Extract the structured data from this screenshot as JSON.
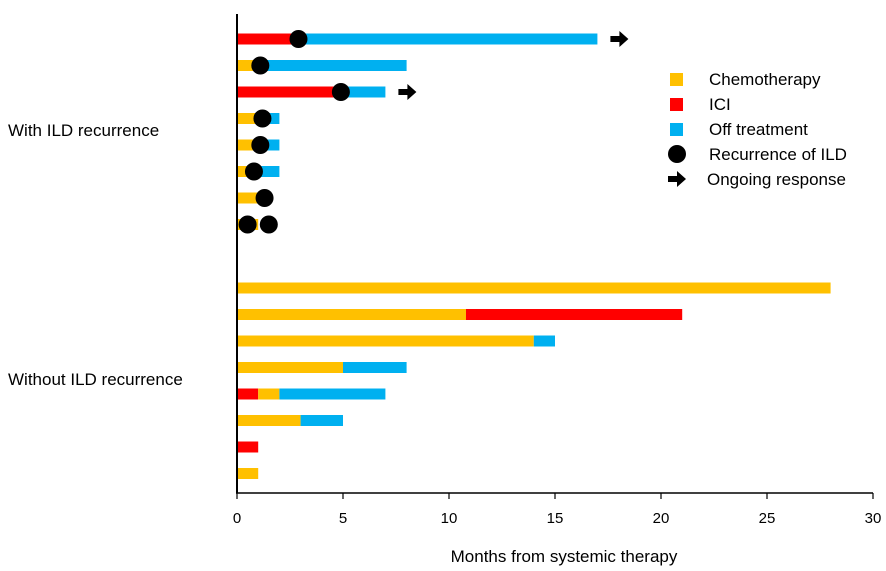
{
  "chart_data": {
    "type": "bar",
    "orientation": "horizontal-stacked",
    "xlabel": "Months from systemic therapy",
    "xlim": [
      0,
      30
    ],
    "xticks": [
      0,
      5,
      10,
      15,
      20,
      25,
      30
    ],
    "grid": false,
    "legend_position": "right",
    "colors": {
      "Chemotherapy": "#FFC000",
      "ICI": "#FF0000",
      "Off treatment": "#00B0F0",
      "Recurrence of ILD": "#000000",
      "Ongoing response": "#000000"
    },
    "groups": [
      {
        "label": "With ILD recurrence",
        "patients": [
          {
            "segments": [
              {
                "type": "ICI",
                "start": 0,
                "end": 3
              },
              {
                "type": "Off treatment",
                "start": 3,
                "end": 17
              }
            ],
            "recurrence": [
              2.9
            ],
            "ongoing": true
          },
          {
            "segments": [
              {
                "type": "Chemotherapy",
                "start": 0,
                "end": 1
              },
              {
                "type": "Off treatment",
                "start": 1,
                "end": 8
              }
            ],
            "recurrence": [
              1.1
            ],
            "ongoing": false
          },
          {
            "segments": [
              {
                "type": "ICI",
                "start": 0,
                "end": 5
              },
              {
                "type": "Off treatment",
                "start": 5,
                "end": 7
              }
            ],
            "recurrence": [
              4.9
            ],
            "ongoing": true
          },
          {
            "segments": [
              {
                "type": "Chemotherapy",
                "start": 0,
                "end": 1.2
              },
              {
                "type": "Off treatment",
                "start": 1.2,
                "end": 2
              }
            ],
            "recurrence": [
              1.2
            ],
            "ongoing": false
          },
          {
            "segments": [
              {
                "type": "Chemotherapy",
                "start": 0,
                "end": 1.1
              },
              {
                "type": "Off treatment",
                "start": 1.1,
                "end": 2
              }
            ],
            "recurrence": [
              1.1
            ],
            "ongoing": false
          },
          {
            "segments": [
              {
                "type": "Chemotherapy",
                "start": 0,
                "end": 0.9
              },
              {
                "type": "Off treatment",
                "start": 0.9,
                "end": 2
              }
            ],
            "recurrence": [
              0.8
            ],
            "ongoing": false
          },
          {
            "segments": [
              {
                "type": "Chemotherapy",
                "start": 0,
                "end": 1.2
              }
            ],
            "recurrence": [
              1.3
            ],
            "ongoing": false
          },
          {
            "segments": [
              {
                "type": "Chemotherapy",
                "start": 0,
                "end": 1
              }
            ],
            "recurrence": [
              0.5,
              1.5
            ],
            "ongoing": false
          }
        ]
      },
      {
        "label": "Without ILD recurrence",
        "patients": [
          {
            "segments": [
              {
                "type": "Chemotherapy",
                "start": 0,
                "end": 28
              }
            ],
            "recurrence": [],
            "ongoing": false
          },
          {
            "segments": [
              {
                "type": "Chemotherapy",
                "start": 0,
                "end": 10.8
              },
              {
                "type": "ICI",
                "start": 10.8,
                "end": 21
              }
            ],
            "recurrence": [],
            "ongoing": false
          },
          {
            "segments": [
              {
                "type": "Chemotherapy",
                "start": 0,
                "end": 14
              },
              {
                "type": "Off treatment",
                "start": 14,
                "end": 15
              }
            ],
            "recurrence": [],
            "ongoing": false
          },
          {
            "segments": [
              {
                "type": "Chemotherapy",
                "start": 0,
                "end": 5
              },
              {
                "type": "Off treatment",
                "start": 5,
                "end": 8
              }
            ],
            "recurrence": [],
            "ongoing": false
          },
          {
            "segments": [
              {
                "type": "ICI",
                "start": 0,
                "end": 1
              },
              {
                "type": "Chemotherapy",
                "start": 1,
                "end": 2
              },
              {
                "type": "Off treatment",
                "start": 2,
                "end": 7
              }
            ],
            "recurrence": [],
            "ongoing": false
          },
          {
            "segments": [
              {
                "type": "Chemotherapy",
                "start": 0,
                "end": 3
              },
              {
                "type": "Off treatment",
                "start": 3,
                "end": 5
              }
            ],
            "recurrence": [],
            "ongoing": false
          },
          {
            "segments": [
              {
                "type": "ICI",
                "start": 0,
                "end": 1
              }
            ],
            "recurrence": [],
            "ongoing": false
          },
          {
            "segments": [
              {
                "type": "Chemotherapy",
                "start": 0,
                "end": 1
              }
            ],
            "recurrence": [],
            "ongoing": false
          }
        ]
      }
    ],
    "legend": [
      {
        "label": "Chemotherapy",
        "symbol": "square"
      },
      {
        "label": "ICI",
        "symbol": "square"
      },
      {
        "label": "Off treatment",
        "symbol": "square"
      },
      {
        "label": "Recurrence of ILD",
        "symbol": "circle"
      },
      {
        "label": "Ongoing response",
        "symbol": "arrow"
      }
    ]
  }
}
